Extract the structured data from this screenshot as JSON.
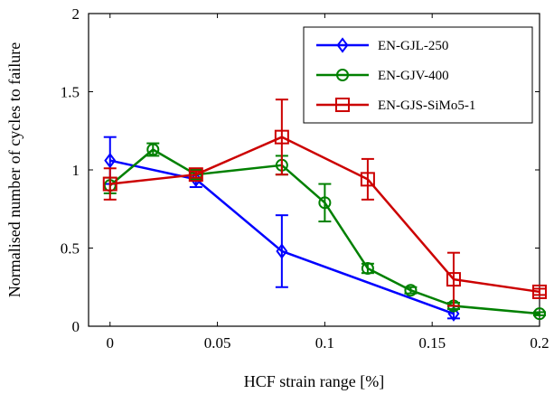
{
  "chart_data": {
    "type": "line",
    "title": "",
    "xlabel": "HCF strain range [%]",
    "ylabel": "Normalised number of cycles to failure",
    "xlim": [
      -0.01,
      0.2
    ],
    "ylim": [
      0,
      2
    ],
    "xticks": [
      0,
      0.05,
      0.1,
      0.15,
      0.2
    ],
    "xtick_labels": [
      "0",
      "0.05",
      "0.1",
      "0.15",
      "0.2"
    ],
    "yticks": [
      0,
      0.5,
      1,
      1.5,
      2
    ],
    "ytick_labels": [
      "0",
      "0.5",
      "1",
      "1.5",
      "2"
    ],
    "grid": false,
    "legend_position": "top-right",
    "series": [
      {
        "name": "EN-GJL-250",
        "color": "#0000ff",
        "marker": "diamond",
        "x": [
          0,
          0.04,
          0.08,
          0.16
        ],
        "y": [
          1.06,
          0.94,
          0.48,
          0.08
        ],
        "err": [
          0.15,
          0.05,
          0.23,
          0.03
        ]
      },
      {
        "name": "EN-GJV-400",
        "color": "#008000",
        "marker": "circle",
        "x": [
          0,
          0.02,
          0.04,
          0.08,
          0.1,
          0.12,
          0.14,
          0.16,
          0.2
        ],
        "y": [
          0.9,
          1.13,
          0.97,
          1.03,
          0.79,
          0.37,
          0.23,
          0.13,
          0.08
        ],
        "err": [
          0.05,
          0.04,
          0.03,
          0.06,
          0.12,
          0.03,
          0.02,
          0.02,
          0.01
        ]
      },
      {
        "name": "EN-GJS-SiMo5-1",
        "color": "#cc0000",
        "marker": "square",
        "x": [
          0,
          0.04,
          0.08,
          0.12,
          0.16,
          0.2
        ],
        "y": [
          0.91,
          0.97,
          1.21,
          0.94,
          0.3,
          0.22
        ],
        "err": [
          0.1,
          0.02,
          0.24,
          0.13,
          0.17,
          0.02
        ]
      }
    ]
  }
}
